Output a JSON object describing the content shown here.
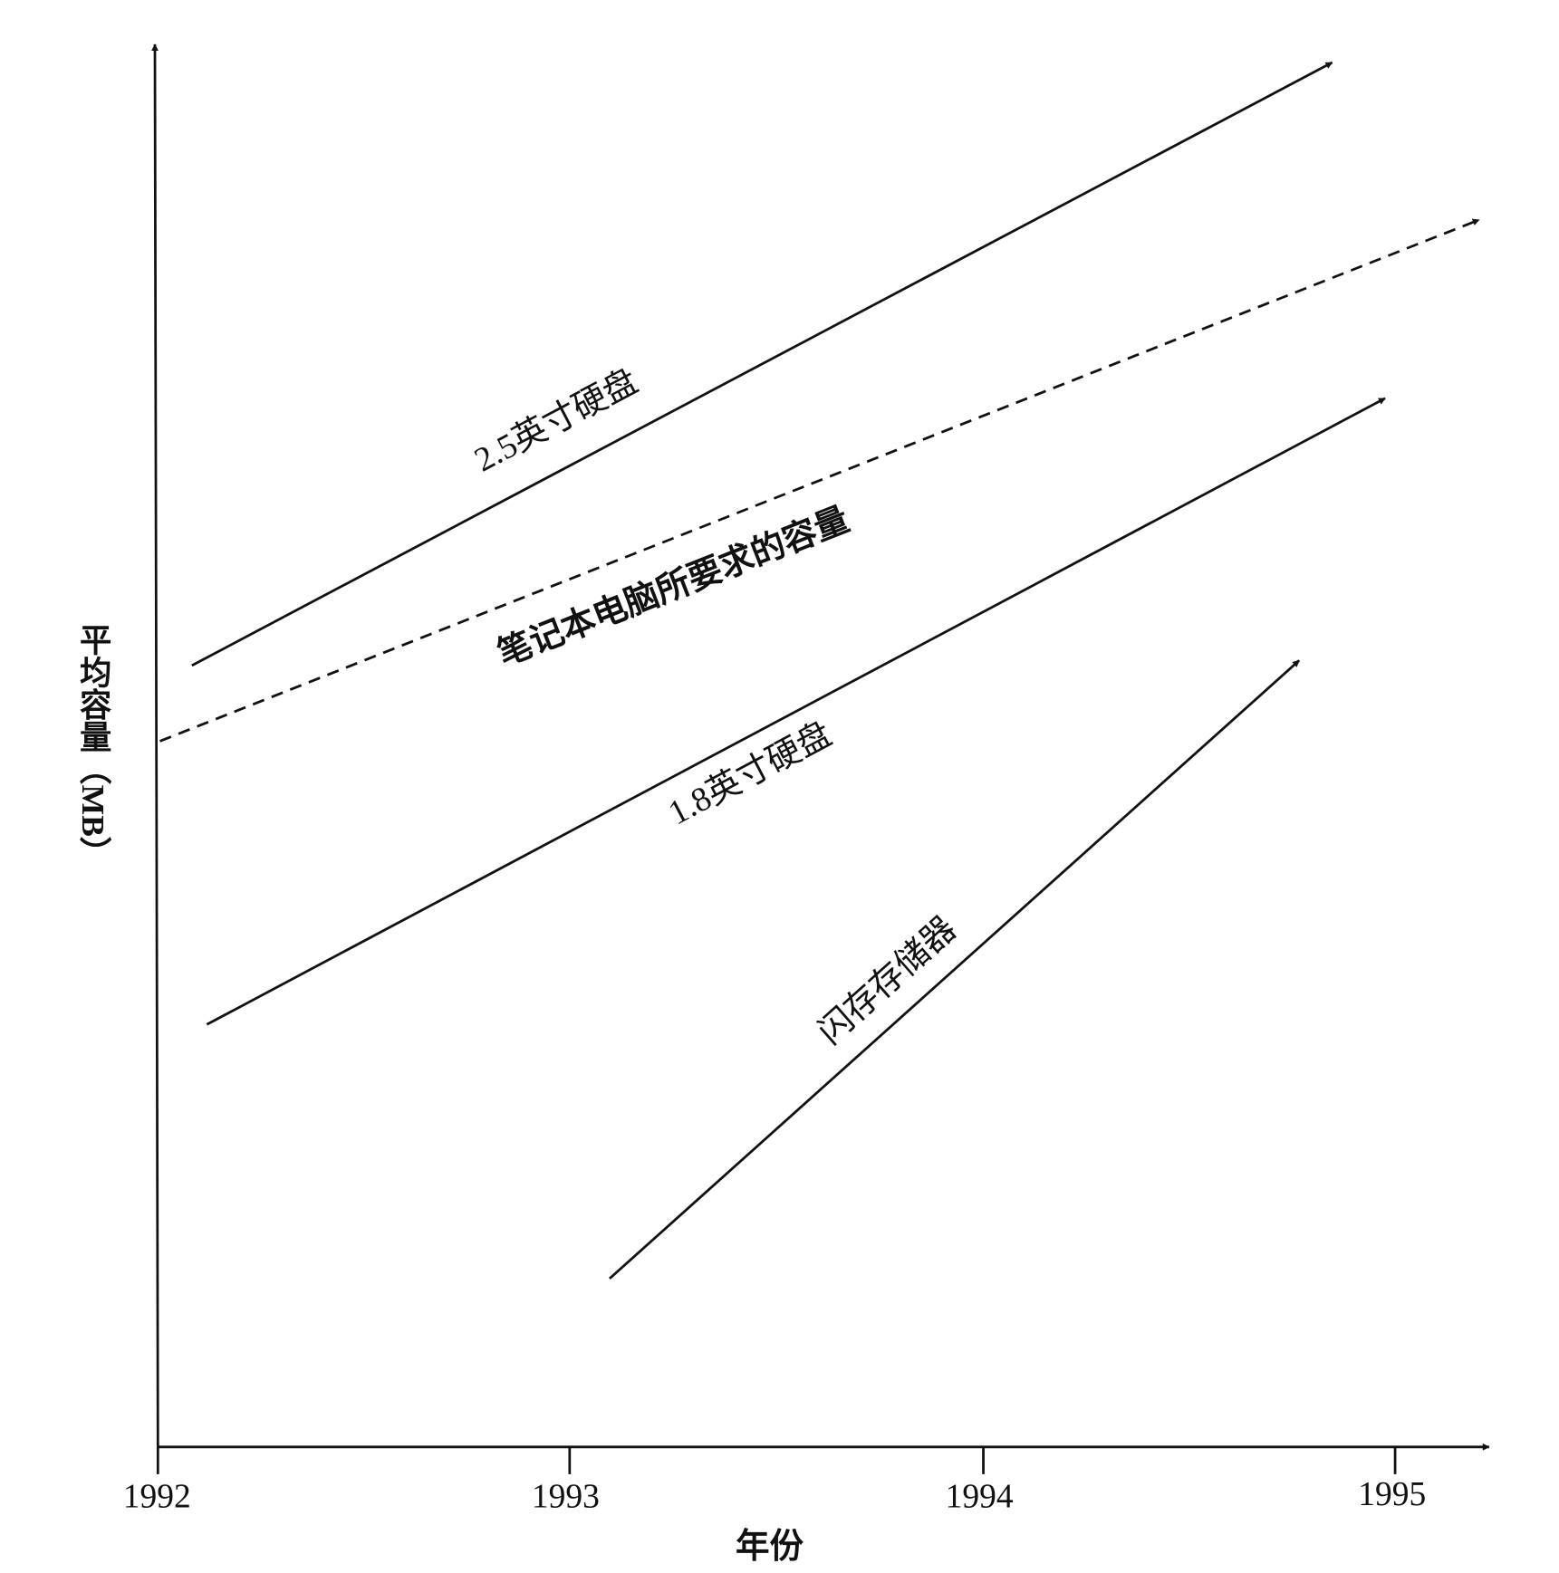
{
  "axes": {
    "x_label": "年份",
    "y_label": "平均容量（MB）",
    "x_ticks": [
      "1992",
      "1993",
      "1994",
      "1995"
    ]
  },
  "lines": [
    {
      "label": "2.5英寸硬盘"
    },
    {
      "label": "笔记本电脑所要求的容量"
    },
    {
      "label": "1.8英寸硬盘"
    },
    {
      "label": "闪存存储器"
    }
  ]
}
